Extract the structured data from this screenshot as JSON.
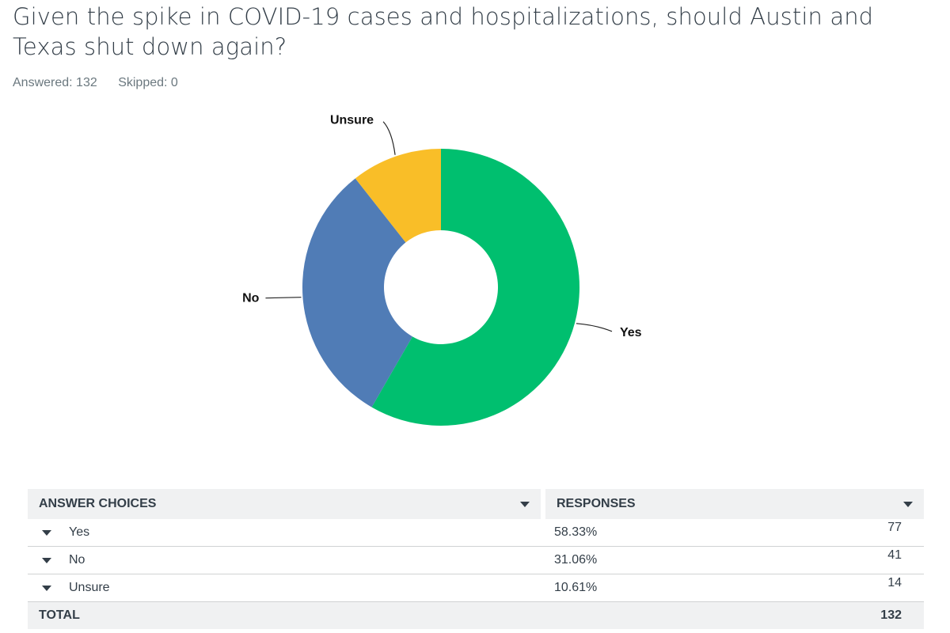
{
  "question": {
    "title": "Given the spike in COVID-19 cases and hospitalizations, should Austin and Texas shut down again?",
    "answered": "Answered: 132",
    "skipped": "Skipped: 0"
  },
  "chart_data": {
    "type": "pie",
    "donut": true,
    "categories": [
      "Yes",
      "No",
      "Unsure"
    ],
    "values": [
      58.33,
      31.06,
      10.61
    ],
    "colors": [
      "#00bf6f",
      "#507cb6",
      "#f9be28"
    ],
    "start_angle_deg": 0,
    "direction": "clockwise",
    "labels": [
      "Yes",
      "No",
      "Unsure"
    ]
  },
  "table": {
    "headers": {
      "choices": "ANSWER CHOICES",
      "responses": "RESPONSES"
    },
    "rows": [
      {
        "choice": "Yes",
        "percent": "58.33%",
        "count": "77"
      },
      {
        "choice": "No",
        "percent": "31.06%",
        "count": "41"
      },
      {
        "choice": "Unsure",
        "percent": "10.61%",
        "count": "14"
      }
    ],
    "total": {
      "label": "TOTAL",
      "count": "132"
    }
  }
}
